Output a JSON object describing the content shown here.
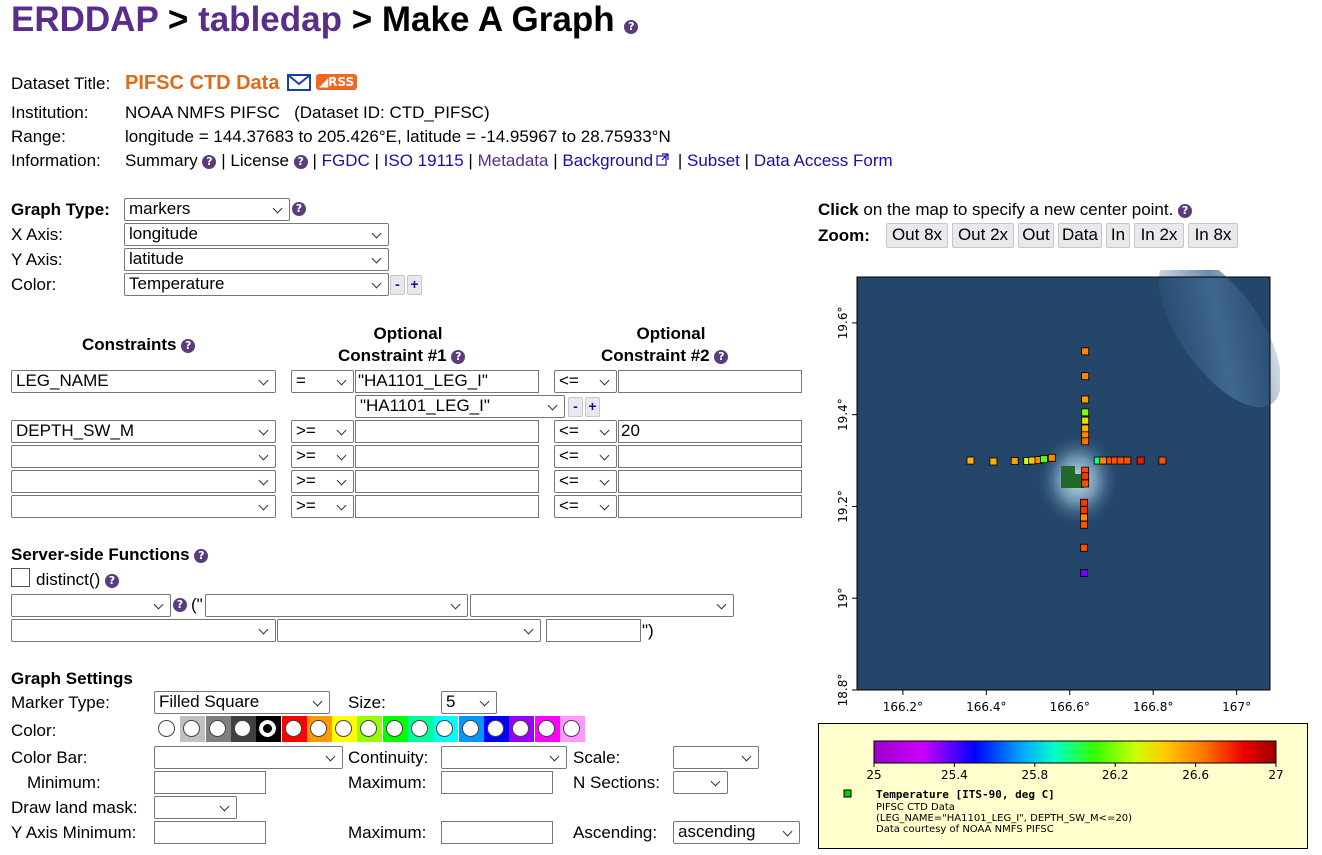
{
  "header": {
    "erddap": "ERDDAP",
    "sep1": " > ",
    "tabledap": "tabledap",
    "sep2": " > ",
    "title": "Make A Graph"
  },
  "info": {
    "dataset_title_label": "Dataset Title:",
    "dataset_title": "PIFSC CTD Data",
    "rss": "RSS",
    "institution_label": "Institution:",
    "institution": "NOAA NMFS PIFSC   (Dataset ID: CTD_PIFSC)",
    "range_label": "Range:",
    "range": "longitude = 144.37683 to 205.426°E, latitude = -14.95967 to 28.75933°N",
    "information_label": "Information:",
    "summary": "Summary",
    "license": "License",
    "fgdc": "FGDC",
    "iso": "ISO 19115",
    "metadata": "Metadata",
    "background": "Background",
    "subset": "Subset",
    "data_access_form": "Data Access Form",
    "bar": "|"
  },
  "graph": {
    "graph_type_label": "Graph Type:",
    "graph_type": "markers",
    "x_axis_label": "X Axis:",
    "x_axis": "longitude",
    "y_axis_label": "Y Axis:",
    "y_axis": "latitude",
    "color_label": "Color:",
    "color": "Temperature"
  },
  "constraints": {
    "header": "Constraints",
    "opt1_line1": "Optional",
    "opt1_line2": "Constraint #1",
    "opt2_line1": "Optional",
    "opt2_line2": "Constraint #2",
    "rows": [
      {
        "var": "LEG_NAME",
        "op1": "=",
        "val1": "\"HA1101_LEG_I\"",
        "op2": "<=",
        "val2": ""
      },
      {
        "var": "DEPTH_SW_M",
        "op1": ">=",
        "val1": "",
        "op2": "<=",
        "val2": "20"
      },
      {
        "var": "",
        "op1": ">=",
        "val1": "",
        "op2": "<=",
        "val2": ""
      },
      {
        "var": "",
        "op1": ">=",
        "val1": "",
        "op2": "<=",
        "val2": ""
      },
      {
        "var": "",
        "op1": ">=",
        "val1": "",
        "op2": "<=",
        "val2": ""
      }
    ],
    "distinct_value_select": "\"HA1101_LEG_I\""
  },
  "server_side": {
    "header": "Server-side Functions",
    "distinct": "distinct()",
    "open_paren": "(\"",
    "close_paren": "\")"
  },
  "settings": {
    "header": "Graph Settings",
    "marker_type_label": "Marker Type:",
    "marker_type": "Filled Square",
    "size_label": "Size:",
    "size": "5",
    "color_label": "Color:",
    "colors": [
      "#ffffff",
      "#c0c0c0",
      "#808080",
      "#404040",
      "#000000",
      "#ff0000",
      "#ff9900",
      "#ffff00",
      "#99ff00",
      "#00ff00",
      "#00ff99",
      "#00ffff",
      "#0099ff",
      "#0000ff",
      "#9900ff",
      "#ff00ff",
      "#ff99ff"
    ],
    "selected_color_index": 4,
    "color_bar_label": "Color Bar:",
    "continuity_label": "Continuity:",
    "scale_label": "Scale:",
    "minimum_label": "Minimum:",
    "maximum_label": "Maximum:",
    "n_sections_label": "N Sections:",
    "land_mask_label": "Draw land mask:",
    "y_axis_min_label": "Y Axis Minimum:",
    "y_axis_max_label": "Maximum:",
    "ascending_label": "Ascending:",
    "ascending": "ascending"
  },
  "map": {
    "click_bold": "Click",
    "click_rest": " on the map to specify a new center point.",
    "zoom_label": "Zoom:",
    "zoom_buttons": [
      "Out 8x",
      "Out 2x",
      "Out",
      "Data",
      "In",
      "In 2x",
      "In 8x"
    ],
    "x_ticks": [
      "166.2°",
      "166.4°",
      "166.6°",
      "166.8°",
      "167°"
    ],
    "y_ticks": [
      "19.6°",
      "19.4°",
      "19.2°",
      "19°",
      "18.8°"
    ]
  },
  "chart_data": {
    "type": "scatter",
    "title": "",
    "xlabel": "",
    "ylabel": "",
    "xlim": [
      166.09,
      167.08
    ],
    "ylim": [
      18.8,
      19.7
    ],
    "x_ticks": [
      166.2,
      166.4,
      166.6,
      166.8,
      167.0
    ],
    "y_ticks": [
      18.8,
      19.0,
      19.2,
      19.4,
      19.6
    ],
    "colorbar": {
      "min": 25,
      "max": 27,
      "ticks": [
        "25",
        "25.4",
        "25.8",
        "26.2",
        "26.6",
        "27"
      ]
    },
    "legend": {
      "series": "Temperature [ITS-90, deg C]",
      "line1": "PIFSC CTD Data",
      "line2": "(LEG_NAME=\"HA1101_LEG_I\", DEPTH_SW_M<=20)",
      "line3": "Data courtesy of NOAA NMFS PIFSC"
    },
    "points": [
      {
        "x": 166.637,
        "y": 19.538,
        "v": 26.6
      },
      {
        "x": 166.637,
        "y": 19.484,
        "v": 26.6
      },
      {
        "x": 166.637,
        "y": 19.433,
        "v": 26.55
      },
      {
        "x": 166.637,
        "y": 19.405,
        "v": 26.2
      },
      {
        "x": 166.637,
        "y": 19.387,
        "v": 26.4
      },
      {
        "x": 166.637,
        "y": 19.37,
        "v": 26.5
      },
      {
        "x": 166.637,
        "y": 19.355,
        "v": 26.6
      },
      {
        "x": 166.637,
        "y": 19.342,
        "v": 26.65
      },
      {
        "x": 166.637,
        "y": 19.278,
        "v": 26.7
      },
      {
        "x": 166.637,
        "y": 19.266,
        "v": 26.75
      },
      {
        "x": 166.637,
        "y": 19.25,
        "v": 26.7
      },
      {
        "x": 166.634,
        "y": 19.208,
        "v": 26.75
      },
      {
        "x": 166.634,
        "y": 19.192,
        "v": 26.75
      },
      {
        "x": 166.634,
        "y": 19.176,
        "v": 26.6
      },
      {
        "x": 166.634,
        "y": 19.16,
        "v": 26.7
      },
      {
        "x": 166.634,
        "y": 19.11,
        "v": 26.7
      },
      {
        "x": 166.634,
        "y": 19.055,
        "v": 25.35
      },
      {
        "x": 166.362,
        "y": 19.3,
        "v": 26.5
      },
      {
        "x": 166.417,
        "y": 19.298,
        "v": 26.5
      },
      {
        "x": 166.468,
        "y": 19.299,
        "v": 26.55
      },
      {
        "x": 166.498,
        "y": 19.299,
        "v": 26.3
      },
      {
        "x": 166.51,
        "y": 19.3,
        "v": 26.45
      },
      {
        "x": 166.525,
        "y": 19.301,
        "v": 26.6
      },
      {
        "x": 166.538,
        "y": 19.303,
        "v": 26.15
      },
      {
        "x": 166.557,
        "y": 19.306,
        "v": 26.6
      },
      {
        "x": 166.667,
        "y": 19.3,
        "v": 25.95
      },
      {
        "x": 166.68,
        "y": 19.3,
        "v": 26.6
      },
      {
        "x": 166.697,
        "y": 19.3,
        "v": 26.7
      },
      {
        "x": 166.708,
        "y": 19.3,
        "v": 26.7
      },
      {
        "x": 166.722,
        "y": 19.3,
        "v": 26.7
      },
      {
        "x": 166.738,
        "y": 19.3,
        "v": 26.7
      },
      {
        "x": 166.77,
        "y": 19.3,
        "v": 26.8
      },
      {
        "x": 166.822,
        "y": 19.3,
        "v": 26.7
      }
    ]
  }
}
